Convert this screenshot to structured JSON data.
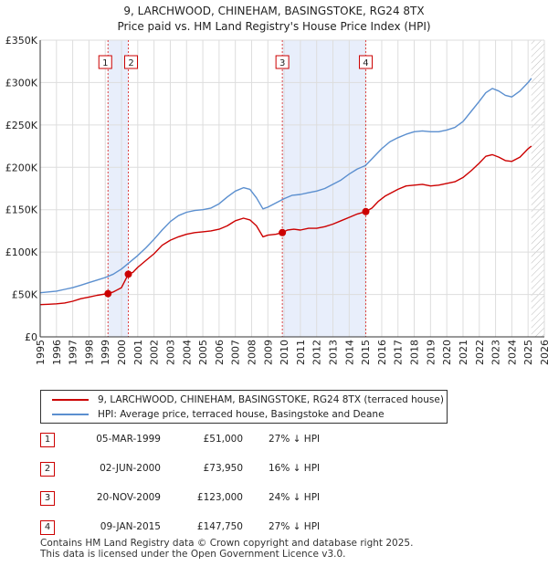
{
  "title_line1": "9, LARCHWOOD, CHINEHAM, BASINGSTOKE, RG24 8TX",
  "title_line2": "Price paid vs. HM Land Registry's House Price Index (HPI)",
  "chart_data": {
    "type": "line",
    "title": "Price paid vs. HM Land Registry's House Price Index (HPI)",
    "xlabel": "",
    "ylabel": "",
    "xlim": [
      1995,
      2026
    ],
    "ylim": [
      0,
      350000
    ],
    "y_ticks": [
      0,
      50000,
      100000,
      150000,
      200000,
      250000,
      300000,
      350000
    ],
    "y_tick_labels": [
      "£0",
      "£50K",
      "£100K",
      "£150K",
      "£200K",
      "£250K",
      "£300K",
      "£350K"
    ],
    "x_ticks": [
      1995,
      1996,
      1997,
      1998,
      1999,
      2000,
      2001,
      2002,
      2003,
      2004,
      2005,
      2006,
      2007,
      2008,
      2009,
      2010,
      2011,
      2012,
      2013,
      2014,
      2015,
      2016,
      2017,
      2018,
      2019,
      2020,
      2021,
      2022,
      2023,
      2024,
      2025,
      2026
    ],
    "grid": true,
    "series": [
      {
        "name": "9, LARCHWOOD, CHINEHAM, BASINGSTOKE, RG24 8TX (terraced house)",
        "color": "#cc0000",
        "x": [
          1995.0,
          1995.5,
          1996.0,
          1996.5,
          1997.0,
          1997.5,
          1998.0,
          1998.5,
          1999.17,
          1999.5,
          2000.0,
          2000.42,
          2000.7,
          2001.0,
          2001.5,
          2002.0,
          2002.5,
          2003.0,
          2003.5,
          2004.0,
          2004.5,
          2005.0,
          2005.5,
          2006.0,
          2006.5,
          2007.0,
          2007.5,
          2007.9,
          2008.3,
          2008.7,
          2009.0,
          2009.5,
          2009.89,
          2010.2,
          2010.6,
          2011.0,
          2011.5,
          2012.0,
          2012.5,
          2013.0,
          2013.5,
          2014.0,
          2014.5,
          2015.02,
          2015.4,
          2015.8,
          2016.2,
          2016.6,
          2017.0,
          2017.5,
          2018.0,
          2018.5,
          2019.0,
          2019.5,
          2020.0,
          2020.5,
          2021.0,
          2021.5,
          2022.0,
          2022.4,
          2022.8,
          2023.2,
          2023.6,
          2024.0,
          2024.5,
          2025.0,
          2025.2
        ],
        "values": [
          38000,
          38500,
          39000,
          40000,
          42000,
          45000,
          47000,
          49000,
          51000,
          53000,
          58000,
          73950,
          76000,
          82000,
          90000,
          98000,
          108000,
          114000,
          118000,
          121000,
          123000,
          124000,
          125000,
          127000,
          131000,
          137000,
          140000,
          138000,
          131000,
          118000,
          120000,
          121000,
          123000,
          126000,
          127000,
          126000,
          128000,
          128000,
          130000,
          133000,
          137000,
          141000,
          145000,
          147750,
          152000,
          160000,
          166000,
          170000,
          174000,
          178000,
          179000,
          180000,
          178000,
          179000,
          181000,
          183000,
          188000,
          196000,
          205000,
          213000,
          215000,
          212000,
          208000,
          207000,
          212000,
          222000,
          225000
        ]
      },
      {
        "name": "HPI: Average price, terraced house, Basingstoke and Deane",
        "color": "#5b8fcf",
        "x": [
          1995.0,
          1995.5,
          1996.0,
          1996.5,
          1997.0,
          1997.5,
          1998.0,
          1998.5,
          1999.0,
          1999.5,
          2000.0,
          2000.5,
          2001.0,
          2001.5,
          2002.0,
          2002.5,
          2003.0,
          2003.5,
          2004.0,
          2004.5,
          2005.0,
          2005.5,
          2006.0,
          2006.5,
          2007.0,
          2007.5,
          2007.9,
          2008.3,
          2008.7,
          2009.0,
          2009.5,
          2010.0,
          2010.5,
          2011.0,
          2011.5,
          2012.0,
          2012.5,
          2013.0,
          2013.5,
          2014.0,
          2014.5,
          2015.0,
          2015.5,
          2016.0,
          2016.5,
          2017.0,
          2017.5,
          2018.0,
          2018.5,
          2019.0,
          2019.5,
          2020.0,
          2020.5,
          2021.0,
          2021.5,
          2022.0,
          2022.4,
          2022.8,
          2023.2,
          2023.6,
          2024.0,
          2024.5,
          2025.0,
          2025.2
        ],
        "values": [
          52000,
          53000,
          54000,
          56000,
          58000,
          61000,
          64000,
          67000,
          70000,
          74000,
          80000,
          88000,
          96000,
          105000,
          115000,
          126000,
          136000,
          143000,
          147000,
          149000,
          150000,
          152000,
          157000,
          165000,
          172000,
          176000,
          174000,
          164000,
          151000,
          153000,
          158000,
          163000,
          167000,
          168000,
          170000,
          172000,
          175000,
          180000,
          185000,
          192000,
          198000,
          202000,
          212000,
          222000,
          230000,
          235000,
          239000,
          242000,
          243000,
          242000,
          242000,
          244000,
          247000,
          254000,
          266000,
          278000,
          288000,
          293000,
          290000,
          285000,
          283000,
          290000,
          300000,
          305000
        ]
      }
    ],
    "vlines": [
      1999.17,
      2000.42,
      2009.89,
      2015.02
    ],
    "shaded_ranges": [
      [
        1999.17,
        2000.42
      ],
      [
        2009.89,
        2015.02
      ]
    ],
    "future_hatch_from": 2025.2,
    "annotations": [
      {
        "label": "1",
        "x": 1999.17
      },
      {
        "label": "2",
        "x": 2000.42
      },
      {
        "label": "3",
        "x": 2009.89
      },
      {
        "label": "4",
        "x": 2015.02
      }
    ],
    "sale_points": [
      {
        "x": 1999.17,
        "y": 51000
      },
      {
        "x": 2000.42,
        "y": 73950
      },
      {
        "x": 2009.89,
        "y": 123000
      },
      {
        "x": 2015.02,
        "y": 147750
      }
    ]
  },
  "legend": {
    "property_label": "9, LARCHWOOD, CHINEHAM, BASINGSTOKE, RG24 8TX (terraced house)",
    "hpi_label": "HPI: Average price, terraced house, Basingstoke and Deane",
    "property_color": "#cc0000",
    "hpi_color": "#5b8fcf"
  },
  "transactions": [
    {
      "num": "1",
      "date": "05-MAR-1999",
      "price": "£51,000",
      "hpi": "27% ↓ HPI"
    },
    {
      "num": "2",
      "date": "02-JUN-2000",
      "price": "£73,950",
      "hpi": "16% ↓ HPI"
    },
    {
      "num": "3",
      "date": "20-NOV-2009",
      "price": "£123,000",
      "hpi": "24% ↓ HPI"
    },
    {
      "num": "4",
      "date": "09-JAN-2015",
      "price": "£147,750",
      "hpi": "27% ↓ HPI"
    }
  ],
  "footer_line1": "Contains HM Land Registry data © Crown copyright and database right 2025.",
  "footer_line2": "This data is licensed under the Open Government Licence v3.0."
}
